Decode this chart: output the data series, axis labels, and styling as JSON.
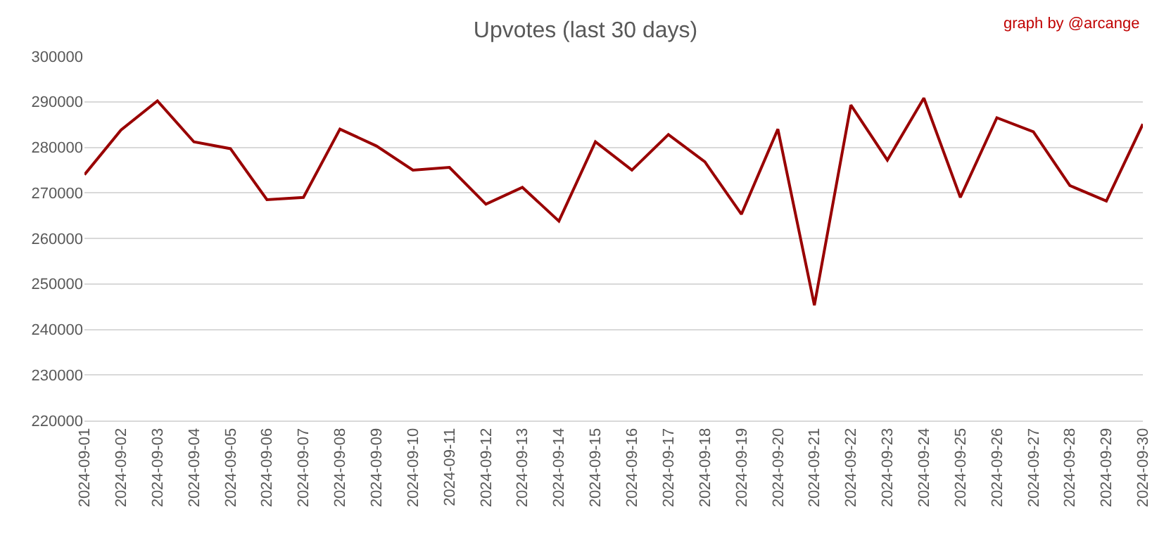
{
  "chart_data": {
    "type": "line",
    "title": "Upvotes (last 30 days)",
    "annotations": [
      "graph by @arcange"
    ],
    "categories": [
      "2024-09-01",
      "2024-09-02",
      "2024-09-03",
      "2024-09-04",
      "2024-09-05",
      "2024-09-06",
      "2024-09-07",
      "2024-09-08",
      "2024-09-09",
      "2024-09-10",
      "2024-09-11",
      "2024-09-12",
      "2024-09-13",
      "2024-09-14",
      "2024-09-15",
      "2024-09-16",
      "2024-09-17",
      "2024-09-18",
      "2024-09-19",
      "2024-09-20",
      "2024-09-21",
      "2024-09-22",
      "2024-09-23",
      "2024-09-24",
      "2024-09-25",
      "2024-09-26",
      "2024-09-27",
      "2024-09-28",
      "2024-09-29",
      "2024-09-30"
    ],
    "series": [
      {
        "color": "#990000",
        "values": [
          274000,
          283800,
          290200,
          281200,
          279700,
          268500,
          269000,
          284000,
          280300,
          275000,
          275600,
          267500,
          271200,
          263800,
          281200,
          275000,
          282800,
          276800,
          265300,
          284000,
          245300,
          289300,
          277200,
          290800,
          269000,
          286500,
          283400,
          271600,
          268200,
          285100
        ]
      }
    ],
    "ylim": [
      220000,
      300000
    ],
    "yticks": [
      220000,
      230000,
      240000,
      250000,
      260000,
      270000,
      280000,
      290000,
      300000
    ],
    "grid": "y",
    "marker": "none",
    "line_style": "solid"
  }
}
